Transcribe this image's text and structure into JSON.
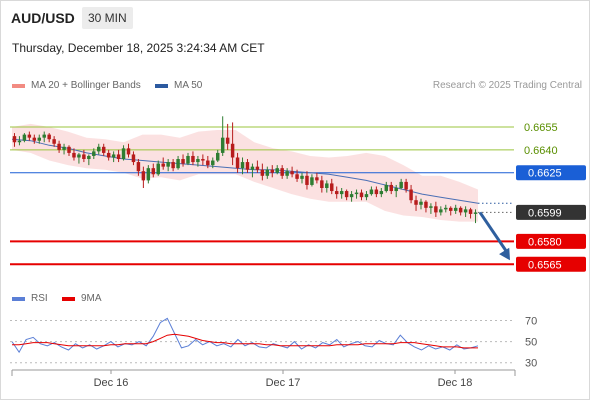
{
  "header": {
    "symbol": "AUD/USD",
    "timeframe": "30 MIN",
    "datetime": "Thursday, December 18, 2025 3:24:34 AM CET"
  },
  "credit": "Research © 2025 Trading Central",
  "legend": [
    {
      "label": "MA 20 + Bollinger Bands",
      "color": "#f28b82"
    },
    {
      "label": "MA 50",
      "color": "#2c5aa0"
    }
  ],
  "rsi_legend": [
    {
      "label": "RSI",
      "color": "#5b7fd6"
    },
    {
      "label": "9MA",
      "color": "#e60000"
    }
  ],
  "colors": {
    "up_candle": "#2e7d32",
    "down_candle": "#b71c1c",
    "resistance_green": "#9bc53d",
    "pivot_blue": "#1a5fd6",
    "support_red": "#e60000",
    "current_price_bg": "#333333",
    "arrow": "#2f5f9e"
  },
  "chart_data": [
    {
      "type": "candlestick",
      "title": "AUD/USD 30 MIN",
      "x_ticks": [
        "Dec 16",
        "Dec 17",
        "Dec 18"
      ],
      "ylim": [
        0.6556,
        0.6674
      ],
      "current_price": 0.6599,
      "levels": [
        {
          "value": 0.6655,
          "label": "0.6655",
          "kind": "resistance"
        },
        {
          "value": 0.664,
          "label": "0.6640",
          "kind": "resistance"
        },
        {
          "value": 0.6625,
          "label": "0.6625",
          "kind": "pivot"
        },
        {
          "value": 0.6599,
          "label": "0.6599",
          "kind": "current"
        },
        {
          "value": 0.658,
          "label": "0.6580",
          "kind": "support"
        },
        {
          "value": 0.6565,
          "label": "0.6565",
          "kind": "support"
        }
      ],
      "ohlc": [
        [
          0.6649,
          0.6651,
          0.6642,
          0.6645
        ],
        [
          0.6645,
          0.6649,
          0.6643,
          0.6646
        ],
        [
          0.6646,
          0.6651,
          0.6645,
          0.665
        ],
        [
          0.665,
          0.6652,
          0.6646,
          0.6648
        ],
        [
          0.6648,
          0.665,
          0.6644,
          0.6646
        ],
        [
          0.6646,
          0.665,
          0.6644,
          0.6648
        ],
        [
          0.6648,
          0.6652,
          0.6645,
          0.665
        ],
        [
          0.665,
          0.6651,
          0.6645,
          0.6647
        ],
        [
          0.6647,
          0.6649,
          0.6642,
          0.6644
        ],
        [
          0.6644,
          0.6646,
          0.6638,
          0.664
        ],
        [
          0.664,
          0.6644,
          0.6637,
          0.6642
        ],
        [
          0.6642,
          0.6643,
          0.6636,
          0.6638
        ],
        [
          0.6638,
          0.6641,
          0.6633,
          0.6635
        ],
        [
          0.6635,
          0.6638,
          0.6631,
          0.6637
        ],
        [
          0.6637,
          0.664,
          0.6632,
          0.6634
        ],
        [
          0.6634,
          0.6637,
          0.663,
          0.6636
        ],
        [
          0.6636,
          0.6641,
          0.6634,
          0.6639
        ],
        [
          0.6639,
          0.6644,
          0.6637,
          0.6642
        ],
        [
          0.6642,
          0.6644,
          0.6636,
          0.6638
        ],
        [
          0.6638,
          0.664,
          0.6633,
          0.6635
        ],
        [
          0.6635,
          0.6639,
          0.6632,
          0.6637
        ],
        [
          0.6637,
          0.664,
          0.6632,
          0.6634
        ],
        [
          0.6634,
          0.6643,
          0.6633,
          0.6641
        ],
        [
          0.6641,
          0.6644,
          0.6635,
          0.6637
        ],
        [
          0.6637,
          0.6639,
          0.663,
          0.6632
        ],
        [
          0.6632,
          0.6634,
          0.6623,
          0.6626
        ],
        [
          0.6626,
          0.6629,
          0.6615,
          0.662
        ],
        [
          0.662,
          0.663,
          0.6618,
          0.6628
        ],
        [
          0.6628,
          0.6631,
          0.6622,
          0.6624
        ],
        [
          0.6624,
          0.6633,
          0.6623,
          0.6631
        ],
        [
          0.6631,
          0.6635,
          0.6627,
          0.6629
        ],
        [
          0.6629,
          0.6634,
          0.6626,
          0.6632
        ],
        [
          0.6632,
          0.6634,
          0.6626,
          0.6628
        ],
        [
          0.6628,
          0.6636,
          0.6627,
          0.6634
        ],
        [
          0.6634,
          0.6637,
          0.6629,
          0.6631
        ],
        [
          0.6631,
          0.6638,
          0.663,
          0.6636
        ],
        [
          0.6636,
          0.6639,
          0.663,
          0.6632
        ],
        [
          0.6632,
          0.6636,
          0.6629,
          0.6634
        ],
        [
          0.6634,
          0.6637,
          0.663,
          0.6633
        ],
        [
          0.6633,
          0.6636,
          0.6628,
          0.663
        ],
        [
          0.663,
          0.6635,
          0.6628,
          0.6633
        ],
        [
          0.6633,
          0.664,
          0.6632,
          0.6638
        ],
        [
          0.6638,
          0.6662,
          0.6636,
          0.6648
        ],
        [
          0.6648,
          0.6657,
          0.664,
          0.6644
        ],
        [
          0.6644,
          0.6658,
          0.663,
          0.6635
        ],
        [
          0.6635,
          0.6638,
          0.6625,
          0.6628
        ],
        [
          0.6628,
          0.6635,
          0.6624,
          0.6632
        ],
        [
          0.6632,
          0.6634,
          0.6625,
          0.6627
        ],
        [
          0.6627,
          0.6631,
          0.6622,
          0.6629
        ],
        [
          0.6629,
          0.6633,
          0.6625,
          0.6627
        ],
        [
          0.6627,
          0.6631,
          0.662,
          0.6623
        ],
        [
          0.6623,
          0.6629,
          0.6621,
          0.6627
        ],
        [
          0.6627,
          0.663,
          0.6622,
          0.6625
        ],
        [
          0.6625,
          0.663,
          0.6624,
          0.6628
        ],
        [
          0.6628,
          0.663,
          0.6621,
          0.6623
        ],
        [
          0.6623,
          0.6628,
          0.6621,
          0.6626
        ],
        [
          0.6626,
          0.6629,
          0.6622,
          0.6624
        ],
        [
          0.6624,
          0.6627,
          0.6619,
          0.6621
        ],
        [
          0.6621,
          0.6625,
          0.6618,
          0.6623
        ],
        [
          0.6623,
          0.6626,
          0.6614,
          0.6617
        ],
        [
          0.6617,
          0.6624,
          0.6616,
          0.6622
        ],
        [
          0.6622,
          0.6625,
          0.6618,
          0.662
        ],
        [
          0.662,
          0.6623,
          0.6612,
          0.6615
        ],
        [
          0.6615,
          0.662,
          0.6612,
          0.6618
        ],
        [
          0.6618,
          0.6621,
          0.6611,
          0.6613
        ],
        [
          0.6613,
          0.6616,
          0.6608,
          0.6611
        ],
        [
          0.6611,
          0.6615,
          0.6608,
          0.6613
        ],
        [
          0.6613,
          0.6614,
          0.6607,
          0.6609
        ],
        [
          0.6609,
          0.6613,
          0.6606,
          0.6611
        ],
        [
          0.6611,
          0.6614,
          0.6608,
          0.6612
        ],
        [
          0.6612,
          0.6614,
          0.6607,
          0.6609
        ],
        [
          0.6609,
          0.6613,
          0.6607,
          0.6611
        ],
        [
          0.6611,
          0.6616,
          0.661,
          0.6614
        ],
        [
          0.6614,
          0.6616,
          0.6609,
          0.6611
        ],
        [
          0.6611,
          0.6615,
          0.6609,
          0.6613
        ],
        [
          0.6613,
          0.6619,
          0.6612,
          0.6617
        ],
        [
          0.6617,
          0.6619,
          0.6611,
          0.6613
        ],
        [
          0.6613,
          0.6617,
          0.6609,
          0.6615
        ],
        [
          0.6615,
          0.6621,
          0.6614,
          0.6619
        ],
        [
          0.6619,
          0.6621,
          0.6612,
          0.6614
        ],
        [
          0.6614,
          0.6617,
          0.6605,
          0.6607
        ],
        [
          0.6607,
          0.661,
          0.66,
          0.6604
        ],
        [
          0.6604,
          0.6608,
          0.6601,
          0.6606
        ],
        [
          0.6606,
          0.6607,
          0.6599,
          0.6602
        ],
        [
          0.6602,
          0.6605,
          0.6598,
          0.6603
        ],
        [
          0.6603,
          0.6606,
          0.6596,
          0.6599
        ],
        [
          0.6599,
          0.6603,
          0.6597,
          0.6601
        ],
        [
          0.6601,
          0.6604,
          0.6599,
          0.6602
        ],
        [
          0.6602,
          0.6603,
          0.6597,
          0.66
        ],
        [
          0.66,
          0.6604,
          0.6598,
          0.6602
        ],
        [
          0.6602,
          0.6603,
          0.6597,
          0.6599
        ],
        [
          0.6599,
          0.6603,
          0.6596,
          0.6601
        ],
        [
          0.6601,
          0.6602,
          0.6595,
          0.6598
        ],
        [
          0.6598,
          0.6601,
          0.6592,
          0.6599
        ]
      ],
      "ma50": [
        0.6647,
        0.6646,
        0.6643,
        0.6641,
        0.6638,
        0.6636,
        0.6634,
        0.6633,
        0.6632,
        0.6631,
        0.663,
        0.6629,
        0.6628,
        0.6627,
        0.6627,
        0.6626,
        0.6625,
        0.6624,
        0.6622,
        0.662,
        0.6617,
        0.6614,
        0.6611,
        0.6609,
        0.6607,
        0.6605
      ],
      "bollinger_upper": [
        0.6655,
        0.6657,
        0.6655,
        0.6652,
        0.6648,
        0.6647,
        0.6645,
        0.665,
        0.665,
        0.6648,
        0.6652,
        0.6653,
        0.6653,
        0.6645,
        0.6641,
        0.6639,
        0.6636,
        0.6635,
        0.6636,
        0.6638,
        0.6636,
        0.663,
        0.6623,
        0.6623,
        0.6619,
        0.6614
      ],
      "bollinger_lower": [
        0.664,
        0.6638,
        0.6633,
        0.663,
        0.6628,
        0.6627,
        0.6625,
        0.6621,
        0.6622,
        0.662,
        0.6624,
        0.6624,
        0.6624,
        0.6619,
        0.6615,
        0.6611,
        0.6608,
        0.6606,
        0.6606,
        0.6606,
        0.66,
        0.6597,
        0.6596,
        0.6594,
        0.6593,
        0.6593
      ]
    },
    {
      "type": "line",
      "title": "RSI",
      "ylim": [
        25,
        78
      ],
      "y_ticks": [
        70,
        50,
        30
      ],
      "series": [
        {
          "name": "RSI",
          "values": [
            50,
            40,
            52,
            54,
            48,
            46,
            49,
            45,
            42,
            48,
            44,
            47,
            43,
            46,
            50,
            45,
            48,
            47,
            50,
            46,
            55,
            68,
            72,
            58,
            44,
            46,
            52,
            47,
            50,
            46,
            48,
            45,
            52,
            46,
            49,
            45,
            44,
            48,
            46,
            44,
            50,
            43,
            47,
            44,
            49,
            47,
            52,
            45,
            48,
            50,
            46,
            45,
            51,
            48,
            47,
            56,
            49,
            45,
            42,
            46,
            43,
            45,
            42,
            47,
            43,
            44,
            46
          ]
        },
        {
          "name": "9MA",
          "values": [
            47,
            47,
            48,
            49,
            49,
            49,
            48,
            47,
            46,
            46,
            46,
            46,
            46,
            46,
            47,
            47,
            48,
            48,
            48,
            48,
            50,
            53,
            56,
            57,
            56,
            55,
            53,
            51,
            50,
            49,
            49,
            48,
            48,
            48,
            48,
            48,
            47,
            47,
            46,
            46,
            46,
            46,
            46,
            46,
            46,
            46,
            47,
            47,
            47,
            47,
            48,
            48,
            48,
            48,
            48,
            49,
            49,
            49,
            48,
            47,
            46,
            45,
            45,
            45,
            44,
            44,
            44
          ]
        }
      ]
    }
  ]
}
